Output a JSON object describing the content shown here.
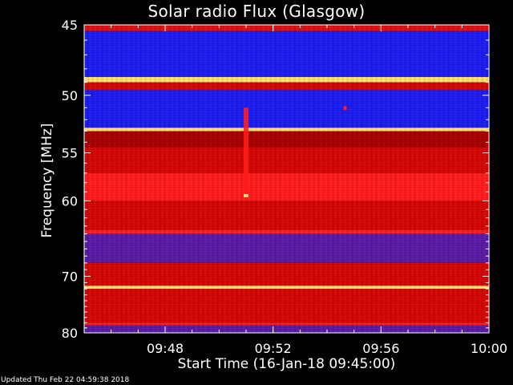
{
  "header": {
    "title": "Solar radio Flux (Glasgow)"
  },
  "footer": {
    "updated": "Updated Thu Feb 22 04:59:38 2018"
  },
  "chart_data": {
    "type": "heatmap",
    "title": "Solar radio Flux (Glasgow)",
    "xlabel": "Start Time (16-Jan-18 09:45:00)",
    "ylabel": "Frequency [MHz]",
    "x_unit": "time (UT)",
    "xlim": [
      "09:45",
      "10:00"
    ],
    "ylim": [
      45,
      80
    ],
    "x_ticks": [
      "09:48",
      "09:52",
      "09:56",
      "10:00"
    ],
    "y_ticks": [
      45,
      50,
      55,
      60,
      70,
      80
    ],
    "y_scale": "reciprocal",
    "grid": false,
    "colormap": [
      "#0a0a6e",
      "#2020ff",
      "#6b1aa8",
      "#c00000",
      "#ff1a1a",
      "#ffe680"
    ],
    "frequency_bands": [
      {
        "from": 45.0,
        "to": 45.4,
        "level": "med-red"
      },
      {
        "from": 45.4,
        "to": 48.6,
        "level": "blue"
      },
      {
        "from": 48.6,
        "to": 49.0,
        "level": "hot"
      },
      {
        "from": 49.0,
        "to": 49.6,
        "level": "red"
      },
      {
        "from": 49.6,
        "to": 52.7,
        "level": "blue"
      },
      {
        "from": 52.7,
        "to": 53.0,
        "level": "hot"
      },
      {
        "from": 53.0,
        "to": 54.5,
        "level": "dark-red"
      },
      {
        "from": 54.5,
        "to": 57.0,
        "level": "red"
      },
      {
        "from": 57.0,
        "to": 60.0,
        "level": "bright-red"
      },
      {
        "from": 60.0,
        "to": 63.5,
        "level": "red"
      },
      {
        "from": 63.5,
        "to": 64.0,
        "level": "bright-red"
      },
      {
        "from": 64.0,
        "to": 68.0,
        "level": "purple"
      },
      {
        "from": 68.0,
        "to": 71.5,
        "level": "red"
      },
      {
        "from": 71.5,
        "to": 72.0,
        "level": "hot"
      },
      {
        "from": 72.0,
        "to": 78.0,
        "level": "red"
      },
      {
        "from": 78.0,
        "to": 78.5,
        "level": "bright-red"
      },
      {
        "from": 78.5,
        "to": 80.0,
        "level": "purple"
      }
    ],
    "features": [
      {
        "type": "burst",
        "time": "09:51",
        "freq_from": 51.0,
        "freq_to": 59.5,
        "level": "bright-red"
      },
      {
        "type": "spot",
        "time": "09:54:40",
        "freq": 51.0,
        "level": "bright-red"
      }
    ]
  }
}
